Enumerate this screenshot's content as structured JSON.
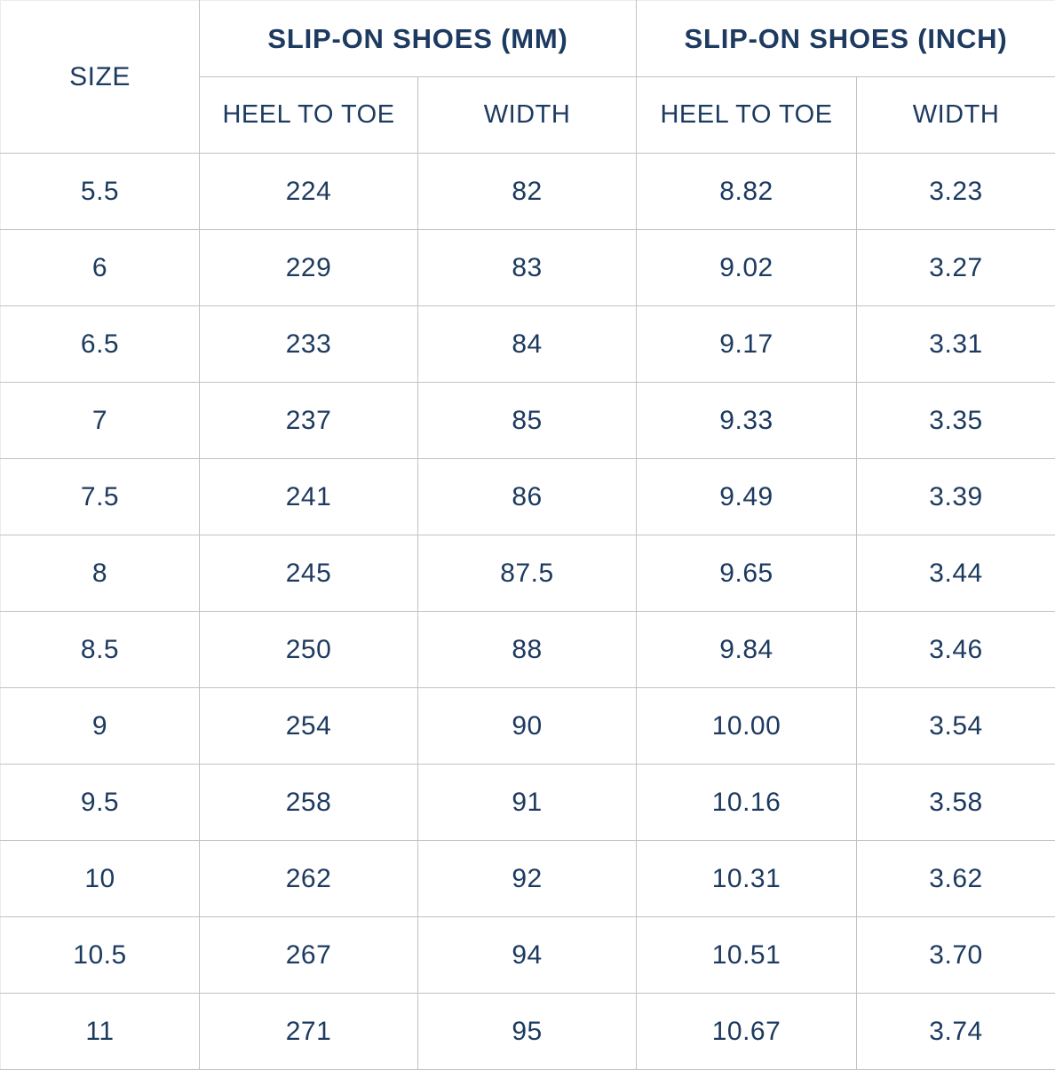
{
  "chart_data": {
    "type": "table",
    "corner_header": "SIZE",
    "groups": [
      {
        "label": "SLIP-ON SHOES (MM)",
        "span": 2
      },
      {
        "label": "SLIP-ON SHOES (INCH)",
        "span": 2
      }
    ],
    "sub_headers": [
      "HEEL TO TOE",
      "WIDTH",
      "HEEL TO TOE",
      "WIDTH"
    ],
    "column_keys": [
      "size",
      "mm-heel-to-toe",
      "mm-width",
      "inch-heel-to-toe",
      "inch-width"
    ],
    "rows": [
      [
        "5.5",
        "224",
        "82",
        "8.82",
        "3.23"
      ],
      [
        "6",
        "229",
        "83",
        "9.02",
        "3.27"
      ],
      [
        "6.5",
        "233",
        "84",
        "9.17",
        "3.31"
      ],
      [
        "7",
        "237",
        "85",
        "9.33",
        "3.35"
      ],
      [
        "7.5",
        "241",
        "86",
        "9.49",
        "3.39"
      ],
      [
        "8",
        "245",
        "87.5",
        "9.65",
        "3.44"
      ],
      [
        "8.5",
        "250",
        "88",
        "9.84",
        "3.46"
      ],
      [
        "9",
        "254",
        "90",
        "10.00",
        "3.54"
      ],
      [
        "9.5",
        "258",
        "91",
        "10.16",
        "3.58"
      ],
      [
        "10",
        "262",
        "92",
        "10.31",
        "3.62"
      ],
      [
        "10.5",
        "267",
        "94",
        "10.51",
        "3.70"
      ],
      [
        "11",
        "271",
        "95",
        "10.67",
        "3.74"
      ]
    ]
  },
  "colors": {
    "text": "#1d3a60",
    "grid": "#c2c2c2",
    "background": "#ffffff"
  }
}
